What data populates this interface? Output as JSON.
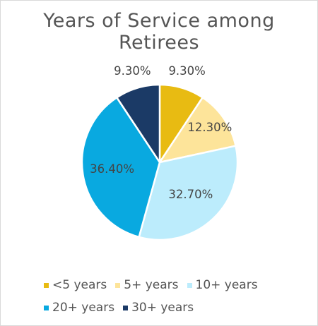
{
  "chart_data": {
    "type": "pie",
    "title": "Years of Service among Retirees",
    "title_lines": [
      "Years of Service among",
      "Retirees"
    ],
    "categories": [
      "<5 years",
      "5+ years",
      "10+ years",
      "20+ years",
      "30+ years"
    ],
    "values": [
      9.3,
      12.3,
      32.7,
      36.4,
      9.3
    ],
    "labels": [
      "9.30%",
      "12.30%",
      "32.70%",
      "36.40%",
      "9.30%"
    ],
    "colors": [
      "#e8bb12",
      "#fde49a",
      "#bcecfc",
      "#09a9e0",
      "#1b3a66"
    ],
    "start_angle_deg": 0,
    "direction": "clockwise",
    "legend_position": "bottom"
  }
}
